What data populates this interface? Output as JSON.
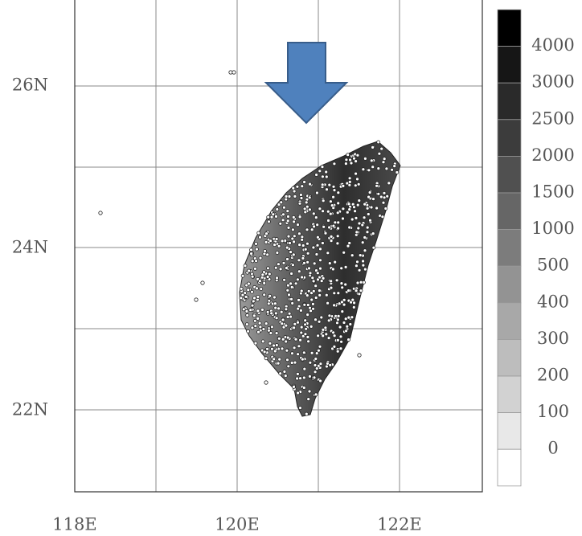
{
  "map": {
    "x_ticks": [
      "118E",
      "120E",
      "122E"
    ],
    "y_ticks": [
      "26N",
      "24N",
      "22N"
    ],
    "colorbar": {
      "labels": [
        "4000",
        "3000",
        "2500",
        "2000",
        "1500",
        "1000",
        "500",
        "400",
        "300",
        "200",
        "100",
        "0"
      ],
      "colors": [
        "#000000",
        "#161616",
        "#2a2a2a",
        "#3c3c3c",
        "#505050",
        "#666666",
        "#7c7c7c",
        "#939393",
        "#a8a8a8",
        "#bdbdbd",
        "#d2d2d2",
        "#e8e8e8",
        "#ffffff"
      ]
    }
  }
}
